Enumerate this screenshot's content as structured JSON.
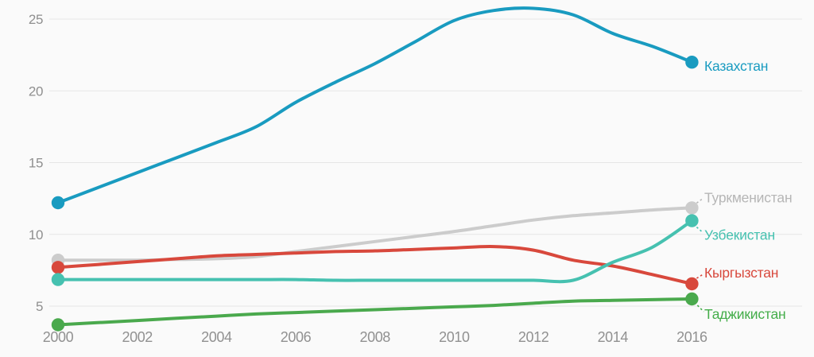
{
  "chart_data": {
    "type": "line",
    "title": "",
    "xlabel": "",
    "ylabel": "",
    "x": [
      2000,
      2001,
      2002,
      2003,
      2004,
      2005,
      2006,
      2007,
      2008,
      2009,
      2010,
      2011,
      2012,
      2013,
      2014,
      2015,
      2016
    ],
    "xticks": [
      2000,
      2002,
      2004,
      2006,
      2008,
      2010,
      2012,
      2014,
      2016
    ],
    "yticks": [
      5,
      10,
      15,
      20,
      25
    ],
    "xlim": [
      1999.7,
      2017.2
    ],
    "ylim": [
      3.2,
      26.3
    ],
    "grid": true,
    "legend_position": "inline-right",
    "background_color": "#fafafa",
    "gridline_color": "#e6e6e6",
    "tick_color": "#919191",
    "series": [
      {
        "id": "turkmenistan",
        "name": "Туркменистан",
        "color": "#cccccc",
        "label_color": "#b6b6b6",
        "values": [
          8.2,
          8.2,
          8.2,
          8.25,
          8.3,
          8.45,
          8.8,
          9.15,
          9.5,
          9.85,
          10.2,
          10.6,
          11.0,
          11.3,
          11.5,
          11.7,
          11.85
        ]
      },
      {
        "id": "kyrgyzstan",
        "name": "Кыргызстан",
        "color": "#d8483c",
        "label_color": "#d8483c",
        "values": [
          7.7,
          7.9,
          8.1,
          8.3,
          8.5,
          8.6,
          8.7,
          8.8,
          8.85,
          8.95,
          9.05,
          9.15,
          8.9,
          8.2,
          7.8,
          7.2,
          6.55
        ]
      },
      {
        "id": "uzbekistan",
        "name": "Узбекистан",
        "color": "#46c1b0",
        "label_color": "#46c1b0",
        "values": [
          6.85,
          6.85,
          6.85,
          6.85,
          6.85,
          6.85,
          6.85,
          6.8,
          6.8,
          6.8,
          6.8,
          6.8,
          6.8,
          6.8,
          8.05,
          9.1,
          10.95
        ]
      },
      {
        "id": "tajikistan",
        "name": "Таджикистан",
        "color": "#4aa94d",
        "label_color": "#44ad4a",
        "values": [
          3.7,
          3.85,
          4.0,
          4.15,
          4.3,
          4.45,
          4.55,
          4.65,
          4.75,
          4.85,
          4.95,
          5.05,
          5.2,
          5.35,
          5.4,
          5.45,
          5.5
        ]
      },
      {
        "id": "kazakhstan",
        "name": "Казахстан",
        "color": "#199bc0",
        "label_color": "#199bc0",
        "values": [
          12.2,
          13.25,
          14.3,
          15.35,
          16.4,
          17.5,
          19.2,
          20.6,
          21.9,
          23.4,
          24.9,
          25.6,
          25.75,
          25.3,
          24.0,
          23.1,
          22.0
        ]
      }
    ]
  }
}
